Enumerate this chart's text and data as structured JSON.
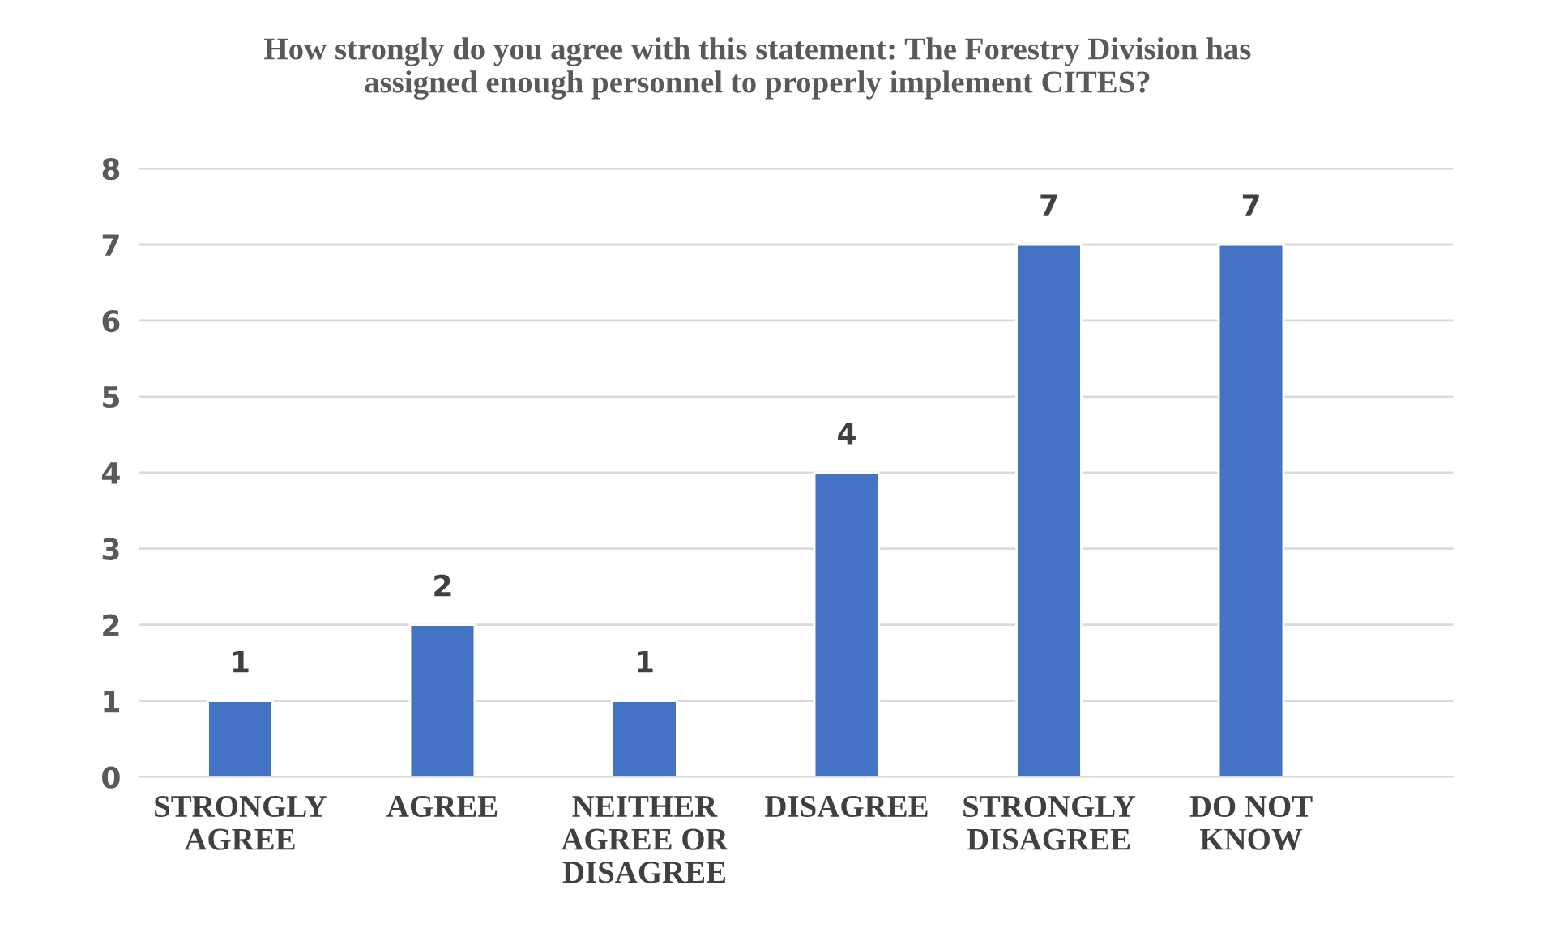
{
  "chart_data": {
    "type": "bar",
    "title": "How strongly do you agree with this statement: The Forestry Division has assigned enough personnel to properly implement CITES?",
    "categories": [
      "STRONGLY AGREE",
      "AGREE",
      "NEITHER AGREE OR DISAGREE",
      "DISAGREE",
      "STRONGLY DISAGREE",
      "DO NOT KNOW"
    ],
    "values": [
      1,
      2,
      1,
      4,
      7,
      7
    ],
    "color": "#4472c4",
    "ylim": [
      0,
      8
    ],
    "yticks": [
      0,
      1,
      2,
      3,
      4,
      5,
      6,
      7,
      8
    ],
    "grid": "y",
    "data_labels": true
  }
}
